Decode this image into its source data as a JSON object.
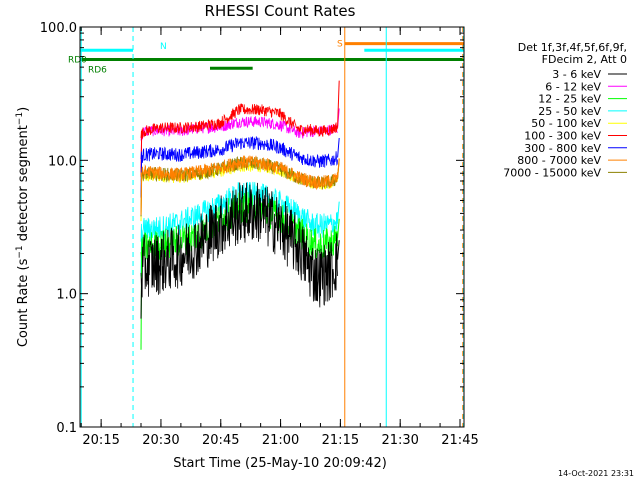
{
  "chart_data": {
    "type": "line",
    "title": "RHESSI Count Rates",
    "xlabel": "Start Time (25-May-10 20:09:42)",
    "ylabel": "Count Rate (s⁻¹ detector segment⁻¹)",
    "ylabel_parts": [
      "Count Rate (s",
      "−1",
      " detector segment",
      "−1",
      ")"
    ],
    "yscale": "log",
    "ylim": [
      0.1,
      100
    ],
    "xlim_minutes": [
      0,
      96.3
    ],
    "x_ticks": [
      {
        "label": "20:15",
        "t": 5.3
      },
      {
        "label": "20:30",
        "t": 20.3
      },
      {
        "label": "20:45",
        "t": 35.3
      },
      {
        "label": "21:00",
        "t": 50.3
      },
      {
        "label": "21:15",
        "t": 65.3
      },
      {
        "label": "21:30",
        "t": 80.3
      },
      {
        "label": "21:45",
        "t": 95.3
      }
    ],
    "y_ticks": [
      {
        "label": "100.0",
        "v": 100
      },
      {
        "label": "10.0",
        "v": 10
      },
      {
        "label": "1.0",
        "v": 1
      },
      {
        "label": "0.1",
        "v": 0.1
      }
    ],
    "legend_header": [
      "Det 1f,3f,4f,5f,6f,9f,",
      "FDecim 2, Att 0"
    ],
    "legend_position": "right",
    "series": [
      {
        "name": "3 - 6 keV",
        "color": "#000000",
        "t": [
          15.3,
          16.0,
          20.0,
          25.0,
          30.0,
          35.0,
          40.0,
          45.0,
          50.0,
          55.0,
          58.0,
          60.0,
          63.0,
          64.6
        ],
        "v": [
          1.3,
          1.6,
          1.7,
          1.9,
          2.4,
          3.2,
          4.0,
          4.1,
          3.2,
          2.2,
          1.5,
          1.35,
          1.5,
          1.8
        ]
      },
      {
        "name": "6 - 12 keV",
        "color": "#ff00ff",
        "t": [
          15.3,
          16.0,
          20.0,
          25.0,
          30.0,
          35.0,
          40.0,
          45.0,
          50.0,
          55.0,
          58.0,
          60.0,
          63.0,
          64.6
        ],
        "v": [
          15,
          16.5,
          16.8,
          16.5,
          17.5,
          17.8,
          19.5,
          19.5,
          18.5,
          16.0,
          16.5,
          16.5,
          17.0,
          17.5
        ]
      },
      {
        "name": "12 - 25 keV",
        "color": "#00ff00",
        "t": [
          15.3,
          16.0,
          20.0,
          25.0,
          30.0,
          35.0,
          40.0,
          45.0,
          50.0,
          55.0,
          58.0,
          60.0,
          63.0,
          64.6
        ],
        "v": [
          1.9,
          2.2,
          2.3,
          2.5,
          2.8,
          3.6,
          4.4,
          4.5,
          3.7,
          2.9,
          2.4,
          2.3,
          2.4,
          2.6
        ]
      },
      {
        "name": "25 - 50 keV",
        "color": "#00ffff",
        "t": [
          15.3,
          16.0,
          20.0,
          25.0,
          30.0,
          35.0,
          40.0,
          45.0,
          50.0,
          55.0,
          58.0,
          60.0,
          63.0,
          64.6
        ],
        "v": [
          2.7,
          3.0,
          3.1,
          3.4,
          3.9,
          4.6,
          5.6,
          5.5,
          4.8,
          3.9,
          3.3,
          3.2,
          3.3,
          3.5
        ]
      },
      {
        "name": "50 - 100 keV",
        "color": "#ffff00",
        "t": [
          15.3,
          16.0,
          20.0,
          25.0,
          30.0,
          35.0,
          40.0,
          45.0,
          50.0,
          55.0,
          58.0,
          60.0,
          63.0,
          64.6
        ],
        "v": [
          7.0,
          7.5,
          7.6,
          7.4,
          7.8,
          8.2,
          9.0,
          9.0,
          8.5,
          7.2,
          6.8,
          6.6,
          6.8,
          7.2
        ]
      },
      {
        "name": "100 - 300 keV",
        "color": "#ff0000",
        "t": [
          15.3,
          16.0,
          20.0,
          25.0,
          30.0,
          35.0,
          40.0,
          45.0,
          50.0,
          55.0,
          58.0,
          60.0,
          63.0,
          64.6
        ],
        "v": [
          15.5,
          16.5,
          17.5,
          17.5,
          18.0,
          19.0,
          24.0,
          24.0,
          22.5,
          17.0,
          17.0,
          16.5,
          17.0,
          18.0
        ]
      },
      {
        "name": "300 - 800 keV",
        "color": "#0000ff",
        "t": [
          15.3,
          16.0,
          20.0,
          25.0,
          30.0,
          35.0,
          40.0,
          45.0,
          50.0,
          55.0,
          58.0,
          60.0,
          63.0,
          64.6
        ],
        "v": [
          10.5,
          11.0,
          11.2,
          11.0,
          11.5,
          12.0,
          13.5,
          13.5,
          12.5,
          10.5,
          10.0,
          9.8,
          10.0,
          10.5
        ]
      },
      {
        "name": "800 - 7000 keV",
        "color": "#ff8000",
        "t": [
          15.3,
          16.0,
          20.0,
          25.0,
          30.0,
          35.0,
          40.0,
          45.0,
          50.0,
          55.0,
          58.0,
          60.0,
          63.0,
          64.6
        ],
        "v": [
          7.8,
          8.2,
          8.0,
          7.8,
          8.2,
          8.8,
          9.7,
          9.6,
          8.8,
          7.4,
          7.0,
          6.8,
          7.0,
          7.4
        ]
      },
      {
        "name": "7000 - 15000 keV",
        "color": "#8b8000",
        "t": [
          15.3,
          16.0,
          20.0,
          25.0,
          30.0,
          35.0,
          40.0,
          45.0,
          50.0,
          55.0,
          58.0,
          60.0,
          63.0,
          64.6
        ],
        "v": [
          7.6,
          8.0,
          7.9,
          7.7,
          8.0,
          8.6,
          9.5,
          9.4,
          8.6,
          7.3,
          6.9,
          6.7,
          6.9,
          7.3
        ]
      }
    ],
    "flag_bars": [
      {
        "label": "RD0",
        "color": "#008000",
        "v": 57,
        "segments": [
          [
            0,
            32.6
          ],
          [
            32.6,
            96.3
          ]
        ]
      },
      {
        "label": "RD6",
        "color": "#008000",
        "v": 49,
        "segments": [
          [
            32.6,
            43.3
          ]
        ]
      },
      {
        "label": "N",
        "color": "#00ffff",
        "v": 67,
        "segments": [
          [
            0,
            13.3
          ]
        ]
      },
      {
        "label": "N",
        "color": "#00ffff",
        "v": 67,
        "segments": [
          [
            71.3,
            96.3
          ]
        ]
      },
      {
        "label": "S",
        "color": "#ff8000",
        "v": 75,
        "segments": [
          [
            66.4,
            96.3
          ]
        ]
      }
    ],
    "vertical_markers": [
      {
        "t": 0.3,
        "color": "#00ffff",
        "style": "solid"
      },
      {
        "t": 13.3,
        "color": "#00ffff",
        "style": "dashed"
      },
      {
        "t": 66.4,
        "color": "#ff8000",
        "style": "solid"
      },
      {
        "t": 76.8,
        "color": "#00ffff",
        "style": "solid"
      },
      {
        "t": 96.0,
        "color": "#ff8000",
        "style": "dashed"
      },
      {
        "t": 96.2,
        "color": "#00ffff",
        "style": "dashed"
      }
    ],
    "timestamp": "14-Oct-2021 23:31"
  }
}
